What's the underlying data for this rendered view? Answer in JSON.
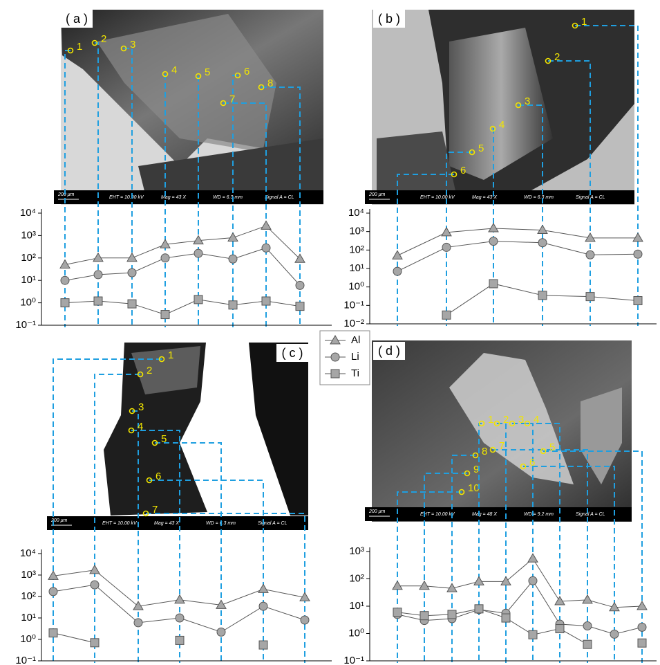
{
  "chart_data": [
    {
      "type": "line",
      "panel": "( a )",
      "scale_bar": "200 μm",
      "info": [
        "EHT = 10.00 kV",
        "Mag =  43 X",
        "WD =  6.3 mm",
        "Signal A = CL"
      ],
      "categories": [
        "1",
        "2",
        "3",
        "4",
        "5",
        "6",
        "7",
        "8"
      ],
      "log_scale": true,
      "ylim": [
        0.1,
        10000
      ],
      "yticks": [
        {
          "value": 0.1,
          "label": "10⁻¹"
        },
        {
          "value": 1,
          "label": "10⁰"
        },
        {
          "value": 10,
          "label": "10¹"
        },
        {
          "value": 100,
          "label": "10²"
        },
        {
          "value": 1000,
          "label": "10³"
        },
        {
          "value": 10000,
          "label": "10⁴"
        }
      ],
      "series": [
        {
          "name": "Al",
          "marker": "triangle",
          "color": "#a6a6a6",
          "values": [
            50,
            100,
            100,
            400,
            600,
            800,
            2700,
            90
          ]
        },
        {
          "name": "Li",
          "marker": "circle",
          "color": "#a6a6a6",
          "values": [
            10,
            18,
            22,
            100,
            160,
            90,
            280,
            6
          ]
        },
        {
          "name": "Ti",
          "marker": "square",
          "color": "#a6a6a6",
          "values": [
            1.0,
            1.2,
            0.9,
            0.3,
            1.4,
            0.8,
            1.2,
            0.7
          ]
        }
      ]
    },
    {
      "type": "line",
      "panel": "( b )",
      "scale_bar": "200 μm",
      "info": [
        "EHT = 10.00 kV",
        "Mag =  43 X",
        "WD =  6.3 mm",
        "Signal A = CL"
      ],
      "categories": [
        "6",
        "5",
        "4",
        "3",
        "2",
        "1"
      ],
      "log_scale": true,
      "ylim": [
        0.01,
        10000
      ],
      "yticks": [
        {
          "value": 0.01,
          "label": "10⁻²"
        },
        {
          "value": 0.1,
          "label": "10⁻¹"
        },
        {
          "value": 1,
          "label": "10⁰"
        },
        {
          "value": 10,
          "label": "10¹"
        },
        {
          "value": 100,
          "label": "10²"
        },
        {
          "value": 1000,
          "label": "10³"
        },
        {
          "value": 10000,
          "label": "10⁴"
        }
      ],
      "series": [
        {
          "name": "Al",
          "marker": "triangle",
          "color": "#a6a6a6",
          "values": [
            50,
            900,
            1500,
            1200,
            450,
            450
          ]
        },
        {
          "name": "Li",
          "marker": "circle",
          "color": "#a6a6a6",
          "values": [
            7,
            140,
            300,
            250,
            55,
            60
          ]
        },
        {
          "name": "Ti",
          "marker": "square",
          "color": "#a6a6a6",
          "values": [
            null,
            0.03,
            1.5,
            0.35,
            0.3,
            0.18
          ]
        }
      ]
    },
    {
      "type": "line",
      "panel": "( c )",
      "scale_bar": "200 μm",
      "info": [
        "EHT = 10.00 kV",
        "Mag =  43 X",
        "WD =  6.3 mm",
        "Signal A = CL"
      ],
      "categories": [
        "1",
        "2",
        "3",
        "4",
        "5",
        "6",
        "7"
      ],
      "log_scale": true,
      "ylim": [
        0.1,
        10000
      ],
      "yticks": [
        {
          "value": 0.1,
          "label": "10⁻¹"
        },
        {
          "value": 1,
          "label": "10⁰"
        },
        {
          "value": 10,
          "label": "10¹"
        },
        {
          "value": 100,
          "label": "10²"
        },
        {
          "value": 1000,
          "label": "10³"
        },
        {
          "value": 10000,
          "label": "10⁴"
        }
      ],
      "series": [
        {
          "name": "Al",
          "marker": "triangle",
          "color": "#a6a6a6",
          "values": [
            900,
            1700,
            35,
            70,
            40,
            220,
            90
          ]
        },
        {
          "name": "Li",
          "marker": "circle",
          "color": "#a6a6a6",
          "values": [
            170,
            350,
            6,
            10,
            2.2,
            35,
            8
          ]
        },
        {
          "name": "Ti",
          "marker": "square",
          "color": "#a6a6a6",
          "values": [
            2,
            0.7,
            null,
            0.9,
            null,
            0.55,
            null
          ]
        }
      ]
    },
    {
      "type": "line",
      "panel": "( d )",
      "scale_bar": "200 μm",
      "info": [
        "EHT = 10.00 kV",
        "Mag =  48 X",
        "WD =  9.2 mm",
        "Signal A = CL"
      ],
      "categories": [
        "10",
        "9",
        "8",
        "1",
        "2",
        "3",
        "4",
        "7",
        "6",
        "5"
      ],
      "log_scale": true,
      "ylim": [
        0.1,
        1000
      ],
      "yticks": [
        {
          "value": 0.1,
          "label": "10⁻¹"
        },
        {
          "value": 1,
          "label": "10⁰"
        },
        {
          "value": 10,
          "label": "10¹"
        },
        {
          "value": 100,
          "label": "10²"
        },
        {
          "value": 1000,
          "label": "10³"
        }
      ],
      "series": [
        {
          "name": "Al",
          "marker": "triangle",
          "color": "#a6a6a6",
          "values": [
            55,
            55,
            45,
            80,
            80,
            550,
            15,
            17,
            9,
            10
          ]
        },
        {
          "name": "Li",
          "marker": "circle",
          "color": "#a6a6a6",
          "values": [
            5,
            3,
            3.5,
            7.5,
            5.5,
            85,
            2.2,
            1.9,
            0.95,
            1.7
          ]
        },
        {
          "name": "Ti",
          "marker": "square",
          "color": "#a6a6a6",
          "values": [
            6,
            4.5,
            5,
            8,
            3.7,
            0.9,
            1.5,
            0.4,
            null,
            0.45
          ]
        }
      ]
    }
  ]
}
